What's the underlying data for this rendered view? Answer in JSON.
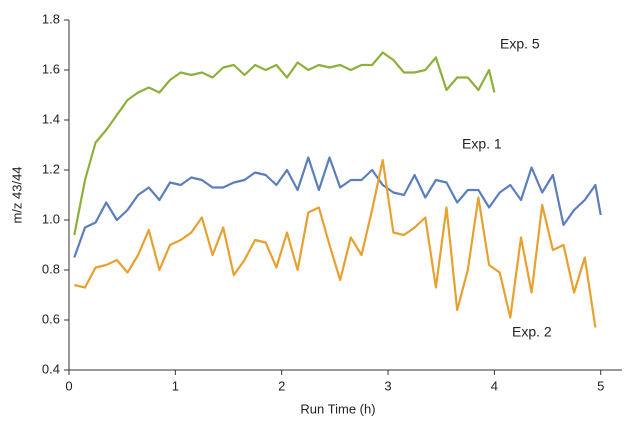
{
  "chart_data": {
    "type": "line",
    "xlabel": "Run Time (h)",
    "ylabel": "m/z 43/44",
    "xlim": [
      0,
      5.2
    ],
    "xticks": [
      0,
      1,
      2,
      3,
      4,
      5
    ],
    "ylim": [
      0.4,
      1.8
    ],
    "yticks": [
      0.4,
      0.6,
      0.8,
      {
        "value": 1,
        "label": "1.0"
      },
      1.2,
      1.4,
      1.6,
      1.8
    ],
    "grid": false,
    "series": [
      {
        "name": "Exp. 5",
        "color": "#8db03c",
        "x": [
          0.05,
          0.15,
          0.25,
          0.35,
          0.45,
          0.55,
          0.65,
          0.75,
          0.85,
          0.95,
          1.05,
          1.15,
          1.25,
          1.35,
          1.45,
          1.55,
          1.65,
          1.75,
          1.85,
          1.95,
          2.05,
          2.15,
          2.25,
          2.35,
          2.45,
          2.55,
          2.65,
          2.75,
          2.85,
          2.95,
          3.05,
          3.15,
          3.25,
          3.35,
          3.45,
          3.55,
          3.65,
          3.75,
          3.85,
          3.95,
          4.0
        ],
        "values": [
          0.94,
          1.16,
          1.31,
          1.36,
          1.42,
          1.48,
          1.51,
          1.53,
          1.51,
          1.56,
          1.59,
          1.58,
          1.59,
          1.57,
          1.61,
          1.62,
          1.58,
          1.62,
          1.6,
          1.62,
          1.57,
          1.63,
          1.6,
          1.62,
          1.61,
          1.62,
          1.6,
          1.62,
          1.62,
          1.67,
          1.64,
          1.59,
          1.59,
          1.6,
          1.65,
          1.52,
          1.57,
          1.57,
          1.52,
          1.6,
          1.51
        ]
      },
      {
        "name": "Exp. 1",
        "color": "#5b7fbc",
        "x": [
          0.05,
          0.15,
          0.25,
          0.35,
          0.45,
          0.55,
          0.65,
          0.75,
          0.85,
          0.95,
          1.05,
          1.15,
          1.25,
          1.35,
          1.45,
          1.55,
          1.65,
          1.75,
          1.85,
          1.95,
          2.05,
          2.15,
          2.25,
          2.35,
          2.45,
          2.55,
          2.65,
          2.75,
          2.85,
          2.95,
          3.05,
          3.15,
          3.25,
          3.35,
          3.45,
          3.55,
          3.65,
          3.75,
          3.85,
          3.95,
          4.05,
          4.15,
          4.25,
          4.35,
          4.45,
          4.55,
          4.65,
          4.75,
          4.85,
          4.95,
          5.0
        ],
        "values": [
          0.85,
          0.97,
          0.99,
          1.07,
          1.0,
          1.04,
          1.1,
          1.13,
          1.08,
          1.15,
          1.14,
          1.17,
          1.16,
          1.13,
          1.13,
          1.15,
          1.16,
          1.19,
          1.18,
          1.14,
          1.2,
          1.12,
          1.25,
          1.12,
          1.25,
          1.13,
          1.16,
          1.16,
          1.2,
          1.14,
          1.11,
          1.1,
          1.18,
          1.09,
          1.16,
          1.15,
          1.07,
          1.12,
          1.12,
          1.05,
          1.11,
          1.14,
          1.08,
          1.21,
          1.11,
          1.18,
          0.98,
          1.04,
          1.08,
          1.14,
          1.02
        ]
      },
      {
        "name": "Exp. 2",
        "color": "#e8a030",
        "x": [
          0.05,
          0.15,
          0.25,
          0.35,
          0.45,
          0.55,
          0.65,
          0.75,
          0.85,
          0.95,
          1.05,
          1.15,
          1.25,
          1.35,
          1.45,
          1.55,
          1.65,
          1.75,
          1.85,
          1.95,
          2.05,
          2.15,
          2.25,
          2.35,
          2.45,
          2.55,
          2.65,
          2.75,
          2.85,
          2.95,
          3.05,
          3.15,
          3.25,
          3.35,
          3.45,
          3.55,
          3.65,
          3.75,
          3.85,
          3.95,
          4.05,
          4.15,
          4.25,
          4.35,
          4.45,
          4.55,
          4.65,
          4.75,
          4.85,
          4.95
        ],
        "values": [
          0.74,
          0.73,
          0.81,
          0.82,
          0.84,
          0.79,
          0.86,
          0.96,
          0.8,
          0.9,
          0.92,
          0.95,
          1.01,
          0.86,
          0.97,
          0.78,
          0.84,
          0.92,
          0.91,
          0.81,
          0.95,
          0.8,
          1.03,
          1.05,
          0.9,
          0.76,
          0.93,
          0.86,
          1.04,
          1.24,
          0.95,
          0.94,
          0.97,
          1.01,
          0.73,
          1.05,
          0.64,
          0.8,
          1.09,
          0.82,
          0.79,
          0.61,
          0.93,
          0.71,
          1.06,
          0.88,
          0.9,
          0.71,
          0.85,
          0.57
        ]
      }
    ]
  }
}
